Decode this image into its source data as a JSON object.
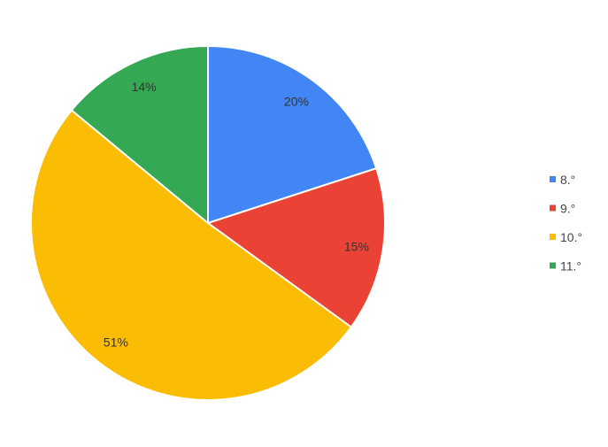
{
  "chart_data": {
    "type": "pie",
    "categories": [
      "8.°",
      "9.°",
      "10.°",
      "11.°"
    ],
    "values": [
      20,
      15,
      51,
      14
    ],
    "data_labels": [
      "20%",
      "15%",
      "51%",
      "14%"
    ],
    "colors": [
      "#4285f4",
      "#ea4335",
      "#fbbc04",
      "#34a853"
    ],
    "start_angle": "top",
    "direction": "clockwise",
    "legend_position": "right"
  }
}
